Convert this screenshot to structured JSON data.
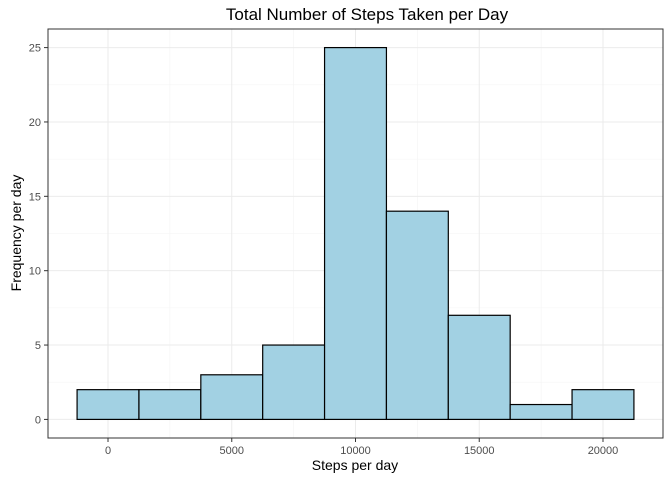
{
  "chart_data": {
    "type": "bar",
    "title": "Total Number of Steps Taken per Day",
    "xlabel": "Steps per day",
    "ylabel": "Frequency per day",
    "bins": [
      {
        "x_start": -1250,
        "x_end": 1250,
        "count": 2
      },
      {
        "x_start": 1250,
        "x_end": 3750,
        "count": 2
      },
      {
        "x_start": 3750,
        "x_end": 6250,
        "count": 3
      },
      {
        "x_start": 6250,
        "x_end": 8750,
        "count": 5
      },
      {
        "x_start": 8750,
        "x_end": 11250,
        "count": 25
      },
      {
        "x_start": 11250,
        "x_end": 13750,
        "count": 14
      },
      {
        "x_start": 13750,
        "x_end": 16250,
        "count": 7
      },
      {
        "x_start": 16250,
        "x_end": 18750,
        "count": 1
      },
      {
        "x_start": 18750,
        "x_end": 21250,
        "count": 2
      }
    ],
    "xlim": [
      -2425,
      22425
    ],
    "ylim": [
      -1.25,
      26.25
    ],
    "x_ticks": [
      0,
      5000,
      10000,
      15000,
      20000
    ],
    "y_ticks": [
      0,
      5,
      10,
      15,
      20,
      25
    ],
    "grid": true,
    "bar_color": "#a2d1e3",
    "bar_edge_color": "#000000",
    "panel_border_color": "#333333"
  }
}
